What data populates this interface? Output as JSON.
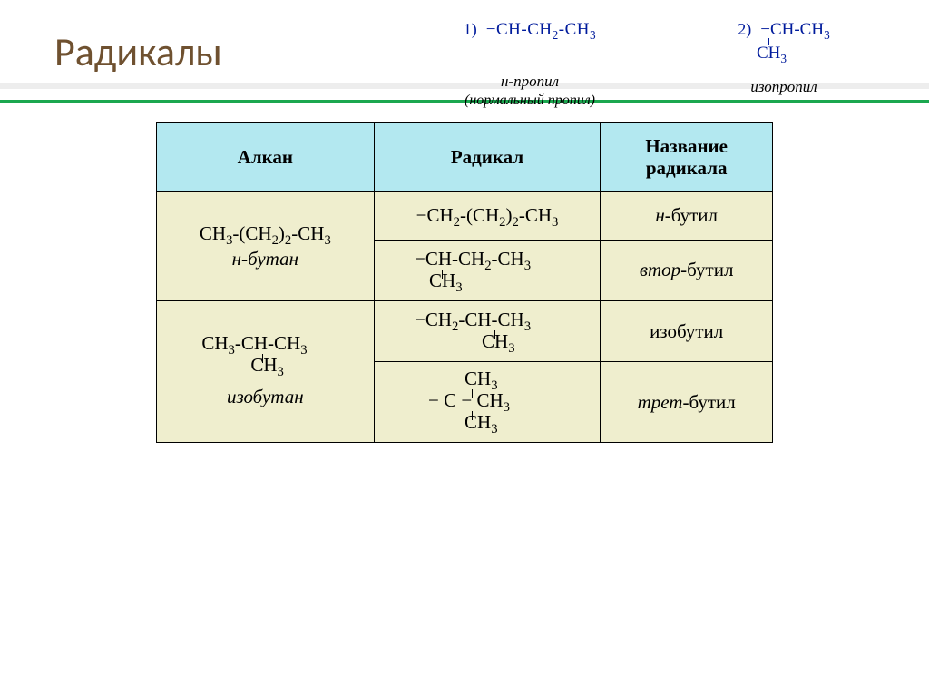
{
  "slide": {
    "title": "Радикалы",
    "title_color": "#6f5130",
    "accent_color": "#1ba74f"
  },
  "top_examples": {
    "item1": {
      "num": "1)",
      "formula_main": "−CH-CH₂-CH₃",
      "label_line1": "н-пропил",
      "label_line2": "(нормальный пропил)"
    },
    "item2": {
      "num": "2)",
      "formula_main": "−CH-CH₃",
      "formula_branch": "CH₃",
      "label": "изопропил"
    },
    "formula_color": "#001b9c"
  },
  "table": {
    "headers": {
      "alkane": "Алкан",
      "radical": "Радикал",
      "name": "Название радикала"
    },
    "header_bg": "#b3e8f0",
    "body_bg": "#efeece",
    "rows": {
      "alkane1": {
        "formula": "CH₃-(CH₂)₂-CH₃",
        "name_prefix": "н-",
        "name": "бутан"
      },
      "alkane2": {
        "formula_l1": "CH₃-CH-CH₃",
        "formula_l2": "CH₃",
        "name": "изобутан"
      },
      "rad1": {
        "formula": "−CH₂-(CH₂)₂-CH₃",
        "name_prefix": "н-",
        "name": "бутил"
      },
      "rad2": {
        "formula_l1": "−CH-CH₂-CH₃",
        "formula_l2": "CH₃",
        "name_prefix": "втор-",
        "name": "бутил"
      },
      "rad3": {
        "formula_l1": "−CH₂-CH-CH₃",
        "formula_l2": "CH₃",
        "name": "изобутил"
      },
      "rad4": {
        "formula_l1": "CH₃",
        "formula_l2": "− C − CH₃",
        "formula_l3": "CH₃",
        "name_prefix": "трет-",
        "name": "бутил"
      }
    }
  }
}
